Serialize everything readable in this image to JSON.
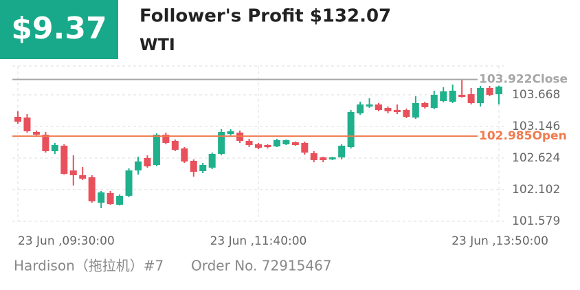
{
  "header": {
    "badge": "$9.37",
    "title": "Follower's Profit $132.07",
    "subtitle": "WTI"
  },
  "chart_data": {
    "type": "candlestick",
    "categories": [
      "23 Jun ,09:30:00",
      null,
      null,
      null,
      null,
      null,
      null,
      null,
      null,
      null,
      null,
      null,
      null,
      null,
      null,
      null,
      null,
      null,
      null,
      null,
      null,
      null,
      null,
      null,
      null,
      null,
      "23 Jun ,11:40:00",
      null,
      null,
      null,
      null,
      null,
      null,
      null,
      null,
      null,
      null,
      null,
      null,
      null,
      null,
      null,
      null,
      null,
      null,
      null,
      null,
      null,
      null,
      null,
      null,
      null,
      "23 Jun ,13:50:00"
    ],
    "open": [
      103.305,
      103.293,
      103.055,
      103.01,
      102.737,
      102.828,
      102.419,
      102.34,
      102.306,
      101.886,
      102.045,
      101.852,
      102.0,
      102.419,
      102.624,
      102.51,
      103.01,
      102.908,
      102.782,
      102.578,
      102.408,
      102.465,
      102.692,
      103.021,
      103.044,
      102.908,
      102.851,
      102.839,
      102.816,
      102.851,
      102.885,
      102.874,
      102.703,
      102.635,
      102.601,
      102.635,
      102.805,
      103.362,
      103.475,
      103.509,
      103.452,
      103.418,
      103.418,
      103.293,
      103.532,
      103.452,
      103.566,
      103.555,
      103.668,
      103.679,
      103.532,
      103.782,
      103.679
    ],
    "high": [
      103.396,
      103.35,
      103.078,
      103.055,
      102.874,
      102.851,
      102.669,
      102.476,
      102.34,
      102.079,
      102.079,
      102.022,
      102.453,
      102.646,
      102.669,
      103.032,
      103.044,
      102.93,
      102.805,
      102.601,
      102.544,
      102.714,
      103.101,
      103.101,
      103.078,
      102.942,
      102.874,
      102.851,
      102.942,
      102.93,
      102.896,
      102.896,
      102.737,
      102.646,
      102.646,
      102.851,
      103.418,
      103.555,
      103.611,
      103.532,
      103.475,
      103.509,
      103.441,
      103.645,
      103.555,
      103.736,
      103.793,
      103.838,
      103.922,
      103.782,
      103.816,
      103.816,
      103.827
    ],
    "low": [
      103.191,
      103.044,
      102.998,
      102.714,
      102.692,
      102.351,
      102.17,
      102.261,
      101.886,
      101.795,
      101.852,
      101.841,
      101.977,
      102.351,
      102.465,
      102.487,
      102.851,
      102.737,
      102.544,
      102.317,
      102.374,
      102.442,
      102.669,
      102.998,
      102.874,
      102.805,
      102.771,
      102.782,
      102.805,
      102.839,
      102.828,
      102.68,
      102.555,
      102.555,
      102.59,
      102.601,
      102.782,
      103.339,
      103.452,
      103.396,
      103.362,
      103.35,
      103.282,
      103.271,
      103.441,
      103.43,
      103.543,
      103.532,
      103.623,
      103.509,
      103.475,
      103.645,
      103.509
    ],
    "close": [
      103.225,
      103.066,
      103.01,
      102.737,
      102.839,
      102.363,
      102.34,
      102.283,
      101.909,
      102.056,
      101.863,
      102.0,
      102.419,
      102.567,
      102.487,
      103.01,
      102.874,
      102.76,
      102.567,
      102.397,
      102.51,
      102.692,
      103.055,
      103.066,
      102.908,
      102.839,
      102.794,
      102.805,
      102.919,
      102.919,
      102.839,
      102.714,
      102.59,
      102.59,
      102.635,
      102.828,
      103.384,
      103.509,
      103.509,
      103.418,
      103.396,
      103.384,
      103.305,
      103.532,
      103.464,
      103.668,
      103.725,
      103.736,
      103.634,
      103.532,
      103.782,
      103.668,
      103.804
    ],
    "up_color": "#1fb08c",
    "down_color": "#e8505b",
    "ylim": [
      101.579,
      104.145
    ],
    "yticks": [
      101.579,
      102.102,
      102.624,
      103.146,
      103.668
    ],
    "grid": true,
    "reference_lines": [
      {
        "value": 103.922,
        "name": "Close",
        "color": "#a6a6a6"
      },
      {
        "value": 102.985,
        "name": "Open",
        "color": "#f07b4f"
      }
    ]
  },
  "footer": {
    "trader": "Hardison（拖拉机）#7",
    "order": "Order No. 72915467"
  }
}
